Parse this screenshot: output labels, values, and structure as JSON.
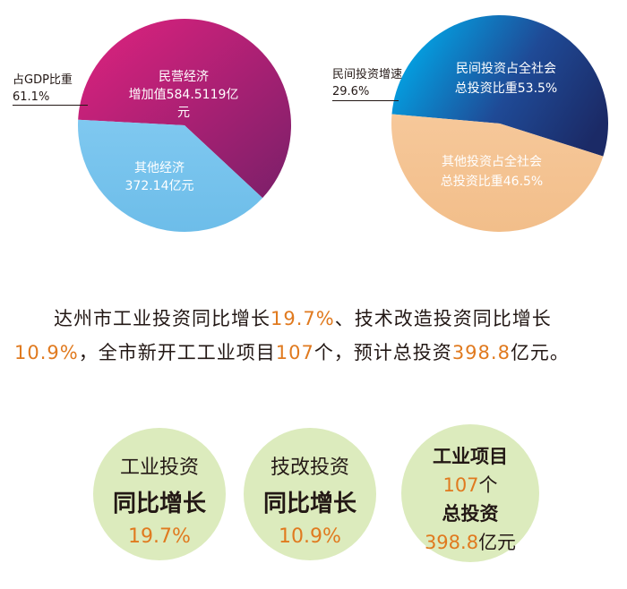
{
  "chart_data": [
    {
      "type": "pie",
      "slices": [
        {
          "label": "民营经济\n增加值584.5119亿元",
          "value": 61.1,
          "color": "#c2237a",
          "color2": "#7e1e6a"
        },
        {
          "label": "其他经济\n372.14亿元",
          "value": 38.9,
          "color": "#78c4ee",
          "color2": "#6dbdea"
        }
      ],
      "annotation": {
        "line1": "占GDP比重",
        "line2": "61.1%"
      }
    },
    {
      "type": "pie",
      "slices": [
        {
          "label": "民间投资占全社会\n总投资比重53.5%",
          "value": 53.5,
          "color": "#00a8e8",
          "color2": "#1b2c6e"
        },
        {
          "label": "其他投资占全社会\n总投资比重46.5%",
          "value": 46.5,
          "color": "#f4c596",
          "color2": "#f0bd88"
        }
      ],
      "annotation": {
        "line1": "民间投资增速",
        "line2": "29.6%"
      }
    }
  ],
  "pie1": {
    "slice1_line1": "民营经济",
    "slice1_line2": "增加值584.5119亿元",
    "slice2_line1": "其他经济",
    "slice2_line2": "372.14亿元",
    "ann_line1": "占GDP比重",
    "ann_line2": "61.1%"
  },
  "pie2": {
    "slice1_line1": "民间投资占全社会",
    "slice1_line2": "总投资比重53.5%",
    "slice2_line1": "其他投资占全社会",
    "slice2_line2": "总投资比重46.5%",
    "ann_line1": "民间投资增速",
    "ann_line2": "29.6%"
  },
  "paragraph": {
    "t1": "　　达州市工业投资同比增长",
    "h1": "19.7%",
    "t2": "、技术改造投资同比增长",
    "h2": "10.9%",
    "t3": "，全市新开工工业项目",
    "h3": "107",
    "t4": "个，预计总投资",
    "h4": "398.8",
    "t5": "亿元。"
  },
  "circles": [
    {
      "line1": "工业投资",
      "line2": "同比增长",
      "value": "19.7%"
    },
    {
      "line1": "技改投资",
      "line2": "同比增长",
      "value": "10.9%"
    },
    {
      "line1": "工业项目",
      "count": "107",
      "count_unit": "个",
      "line3": "总投资",
      "amount": "398.8",
      "amount_unit": "亿元"
    }
  ],
  "colors": {
    "highlight": "#e07a1f",
    "circle_fill": "#dcebbd"
  }
}
